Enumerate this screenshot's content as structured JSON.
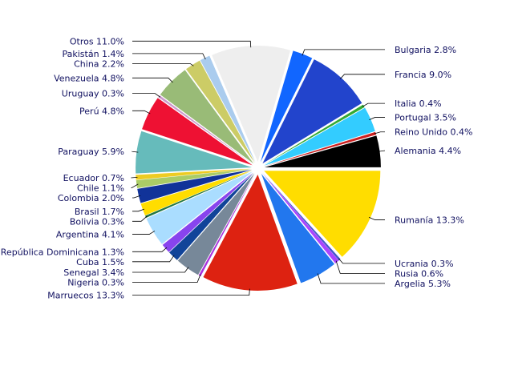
{
  "chart_data": {
    "type": "pie",
    "title": "",
    "slices": [
      {
        "label": "Alemania 4.4%",
        "value": 4.4,
        "color": "#000000"
      },
      {
        "label": "Reino Unido 0.4%",
        "value": 0.4,
        "color": "#cc2020"
      },
      {
        "label": "Portugal 3.5%",
        "value": 3.5,
        "color": "#33ccff"
      },
      {
        "label": "Italia 0.4%",
        "value": 0.4,
        "color": "#33aa33"
      },
      {
        "label": "Francia 9.0%",
        "value": 9.0,
        "color": "#2244cc"
      },
      {
        "label": "Bulgaria 2.8%",
        "value": 2.8,
        "color": "#1166ff"
      },
      {
        "label": "Otros 11.0%",
        "value": 11.0,
        "color": "#eeeeee"
      },
      {
        "label": "Pakistán 1.4%",
        "value": 1.4,
        "color": "#aaccee"
      },
      {
        "label": "China 2.2%",
        "value": 2.2,
        "color": "#cccc66"
      },
      {
        "label": "Venezuela 4.8%",
        "value": 4.8,
        "color": "#99bb77"
      },
      {
        "label": "Uruguay 0.3%",
        "value": 0.3,
        "color": "#cc99cc"
      },
      {
        "label": "Perú 4.8%",
        "value": 4.8,
        "color": "#ee1133"
      },
      {
        "label": "Paraguay 5.9%",
        "value": 5.9,
        "color": "#66bbbb"
      },
      {
        "label": "Ecuador 0.7%",
        "value": 0.7,
        "color": "#eecc22"
      },
      {
        "label": "Chile 1.1%",
        "value": 1.1,
        "color": "#aacc66"
      },
      {
        "label": "Colombia 2.0%",
        "value": 2.0,
        "color": "#113399"
      },
      {
        "label": "Brasil 1.7%",
        "value": 1.7,
        "color": "#ffdd00"
      },
      {
        "label": "Bolivia 0.3%",
        "value": 0.3,
        "color": "#227744"
      },
      {
        "label": "Argentina 4.1%",
        "value": 4.1,
        "color": "#aaddff"
      },
      {
        "label": "República Dominicana 1.3%",
        "value": 1.3,
        "color": "#8844ee"
      },
      {
        "label": "Cuba 1.5%",
        "value": 1.5,
        "color": "#114499"
      },
      {
        "label": "Senegal 3.4%",
        "value": 3.4,
        "color": "#778899"
      },
      {
        "label": "Nigeria 0.3%",
        "value": 0.3,
        "color": "#aa33dd"
      },
      {
        "label": "Marruecos 13.3%",
        "value": 13.3,
        "color": "#dd2211"
      },
      {
        "label": "Argelia 5.3%",
        "value": 5.3,
        "color": "#2277ee"
      },
      {
        "label": "Rusia 0.6%",
        "value": 0.6,
        "color": "#aa44ff"
      },
      {
        "label": "Ucrania 0.3%",
        "value": 0.3,
        "color": "#4455cc"
      },
      {
        "label": "Rumanía 13.3%",
        "value": 13.3,
        "color": "#ffdd00"
      }
    ],
    "start_angle_deg": 0,
    "direction": "counterclockwise",
    "legend": "none"
  }
}
